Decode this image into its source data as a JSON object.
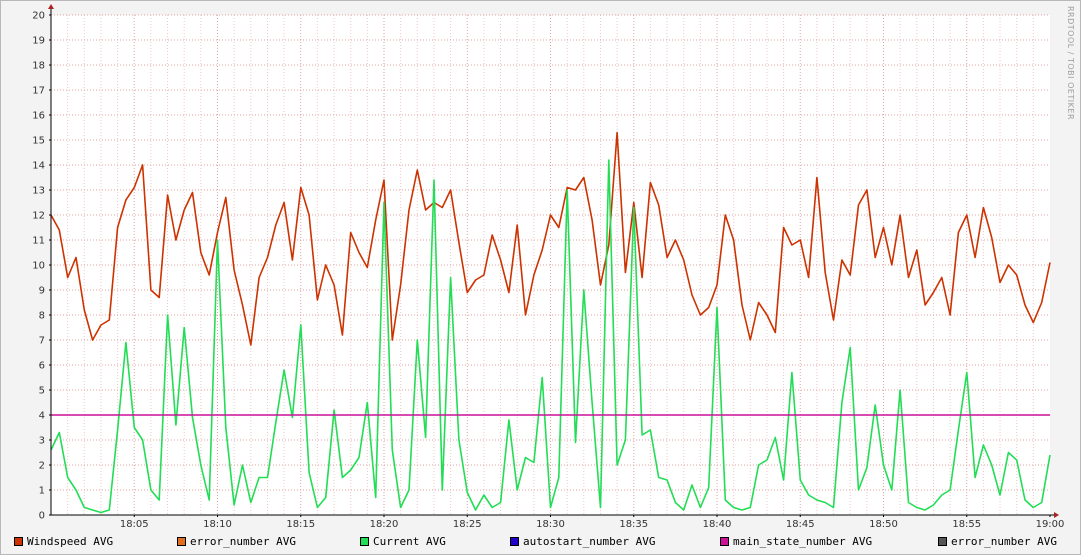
{
  "watermark": "RRDTOOL / TOBI OETIKER",
  "chart_data": {
    "type": "line",
    "title": "",
    "xlabel": "",
    "ylabel": "",
    "ylim": [
      0,
      20
    ],
    "yticks": [
      0,
      1,
      2,
      3,
      4,
      5,
      6,
      7,
      8,
      9,
      10,
      11,
      12,
      13,
      14,
      15,
      16,
      17,
      18,
      19,
      20
    ],
    "xlim": [
      "18:00",
      "19:00"
    ],
    "xticks": [
      "18:05",
      "18:10",
      "18:15",
      "18:20",
      "18:25",
      "18:30",
      "18:35",
      "18:40",
      "18:45",
      "18:50",
      "18:55",
      "19:00"
    ],
    "grid": true,
    "legend": "bottom",
    "series": [
      {
        "name": "Windspeed AVG",
        "color": "#cc3300",
        "x_minutes": [
          0,
          0.5,
          1,
          1.5,
          2,
          2.5,
          3,
          3.5,
          4,
          4.5,
          5,
          5.5,
          6,
          6.5,
          7,
          7.5,
          8,
          8.5,
          9,
          9.5,
          10,
          10.5,
          11,
          11.5,
          12,
          12.5,
          13,
          13.5,
          14,
          14.5,
          15,
          15.5,
          16,
          16.5,
          17,
          17.5,
          18,
          18.5,
          19,
          19.5,
          20,
          20.5,
          21,
          21.5,
          22,
          22.5,
          23,
          23.5,
          24,
          24.5,
          25,
          25.5,
          26,
          26.5,
          27,
          27.5,
          28,
          28.5,
          29,
          29.5,
          30,
          30.5,
          31,
          31.5,
          32,
          32.5,
          33,
          33.5,
          34,
          34.5,
          35,
          35.5,
          36,
          36.5,
          37,
          37.5,
          38,
          38.5,
          39,
          39.5,
          40,
          40.5,
          41,
          41.5,
          42,
          42.5,
          43,
          43.5,
          44,
          44.5,
          45,
          45.5,
          46,
          46.5,
          47,
          47.5,
          48,
          48.5,
          49,
          49.5,
          50,
          50.5,
          51,
          51.5,
          52,
          52.5,
          53,
          53.5,
          54,
          54.5,
          55,
          55.5,
          56,
          56.5,
          57,
          57.5,
          58,
          58.5,
          59,
          59.5,
          60
        ],
        "values": [
          12.0,
          11.4,
          9.5,
          10.3,
          8.2,
          7.0,
          7.6,
          7.8,
          11.5,
          12.6,
          13.1,
          14.0,
          9.0,
          8.7,
          12.8,
          11.0,
          12.2,
          12.9,
          10.5,
          9.6,
          11.3,
          12.7,
          9.8,
          8.4,
          6.8,
          9.5,
          10.3,
          11.6,
          12.5,
          10.2,
          13.1,
          12.0,
          8.6,
          10.0,
          9.2,
          7.2,
          11.3,
          10.5,
          9.9,
          11.8,
          13.4,
          7.0,
          9.2,
          12.2,
          13.8,
          12.2,
          12.5,
          12.3,
          13.0,
          10.9,
          8.9,
          9.4,
          9.6,
          11.2,
          10.2,
          8.9,
          11.6,
          8.0,
          9.6,
          10.6,
          12.0,
          11.5,
          13.1,
          13.0,
          13.5,
          11.8,
          9.2,
          10.8,
          15.3,
          9.7,
          12.5,
          9.5,
          13.3,
          12.4,
          10.3,
          11.0,
          10.2,
          8.8,
          8.0,
          8.3,
          9.2,
          12.0,
          11.0,
          8.4,
          7.0,
          8.5,
          8.0,
          7.3,
          11.5,
          10.8,
          11.0,
          9.5,
          13.5,
          9.7,
          7.8,
          10.2,
          9.6,
          12.4,
          13.0,
          10.3,
          11.5,
          10.0,
          12.0,
          9.5,
          10.6,
          8.4,
          8.9,
          9.5,
          8.0,
          11.3,
          12.0,
          10.3,
          12.3,
          11.1,
          9.3,
          10.0,
          9.6,
          8.4,
          7.7,
          8.5,
          10.1
        ]
      },
      {
        "name": "error_number AVG",
        "color": "#e07020",
        "values": []
      },
      {
        "name": "Current AVG",
        "color": "#22dd55",
        "x_minutes": [
          0,
          0.5,
          1,
          1.5,
          2,
          2.5,
          3,
          3.5,
          4,
          4.5,
          5,
          5.5,
          6,
          6.5,
          7,
          7.5,
          8,
          8.5,
          9,
          9.5,
          10,
          10.5,
          11,
          11.5,
          12,
          12.5,
          13,
          13.5,
          14,
          14.5,
          15,
          15.5,
          16,
          16.5,
          17,
          17.5,
          18,
          18.5,
          19,
          19.5,
          20,
          20.5,
          21,
          21.5,
          22,
          22.5,
          23,
          23.5,
          24,
          24.5,
          25,
          25.5,
          26,
          26.5,
          27,
          27.5,
          28,
          28.5,
          29,
          29.5,
          30,
          30.5,
          31,
          31.5,
          32,
          32.5,
          33,
          33.5,
          34,
          34.5,
          35,
          35.5,
          36,
          36.5,
          37,
          37.5,
          38,
          38.5,
          39,
          39.5,
          40,
          40.5,
          41,
          41.5,
          42,
          42.5,
          43,
          43.5,
          44,
          44.5,
          45,
          45.5,
          46,
          46.5,
          47,
          47.5,
          48,
          48.5,
          49,
          49.5,
          50,
          50.5,
          51,
          51.5,
          52,
          52.5,
          53,
          53.5,
          54,
          54.5,
          55,
          55.5,
          56,
          56.5,
          57,
          57.5,
          58,
          58.5,
          59,
          59.5,
          60
        ],
        "values": [
          2.6,
          3.3,
          1.5,
          1.0,
          0.3,
          0.2,
          0.1,
          0.2,
          3.4,
          6.9,
          3.5,
          3.0,
          1.0,
          0.6,
          8.0,
          3.6,
          7.5,
          3.9,
          2.0,
          0.6,
          11.0,
          3.5,
          0.4,
          2.0,
          0.5,
          1.5,
          1.5,
          3.7,
          5.8,
          3.9,
          7.6,
          1.7,
          0.3,
          0.7,
          4.2,
          1.5,
          1.8,
          2.3,
          4.5,
          0.7,
          12.5,
          2.6,
          0.3,
          1.0,
          7.0,
          3.1,
          13.4,
          1.0,
          9.5,
          3.0,
          0.9,
          0.2,
          0.8,
          0.3,
          0.5,
          3.8,
          1.0,
          2.3,
          2.1,
          5.5,
          0.3,
          1.5,
          13.0,
          2.9,
          9.0,
          4.5,
          0.3,
          14.2,
          2.0,
          3.0,
          12.3,
          3.2,
          3.4,
          1.5,
          1.4,
          0.5,
          0.2,
          1.2,
          0.3,
          1.1,
          8.3,
          0.6,
          0.3,
          0.2,
          0.3,
          2.0,
          2.2,
          3.1,
          1.4,
          5.7,
          1.4,
          0.8,
          0.6,
          0.5,
          0.3,
          4.5,
          6.7,
          1.0,
          1.9,
          4.4,
          2.0,
          1.0,
          5.0,
          0.5,
          0.3,
          0.2,
          0.4,
          0.8,
          1.0,
          3.4,
          5.7,
          1.5,
          2.8,
          2.0,
          0.8,
          2.5,
          2.2,
          0.6,
          0.3,
          0.5,
          2.4
        ]
      },
      {
        "name": "autostart_number AVG",
        "color": "#2200cc",
        "values": []
      },
      {
        "name": "main_state_number AVG",
        "color": "#cc1199",
        "x_minutes": [
          0,
          60
        ],
        "values": [
          4,
          4
        ]
      },
      {
        "name": "error_number AVG",
        "color": "#555555",
        "values": []
      }
    ]
  }
}
